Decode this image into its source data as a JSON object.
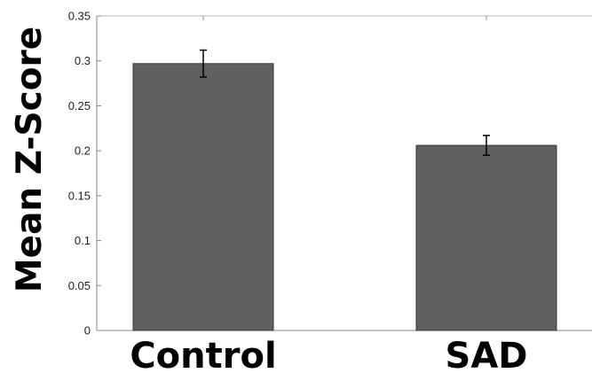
{
  "chart_data": {
    "type": "bar",
    "title": "",
    "xlabel": "",
    "ylabel": "Mean Z-Score",
    "categories": [
      "Control",
      "SAD"
    ],
    "values": [
      0.297,
      0.206
    ],
    "error": [
      0.015,
      0.011
    ],
    "ylim": [
      0,
      0.35
    ],
    "yticks": [
      0,
      0.05,
      0.1,
      0.15,
      0.2,
      0.25,
      0.3,
      0.35
    ],
    "ytick_labels": [
      "0",
      "0.05",
      "0.1",
      "0.15",
      "0.2",
      "0.25",
      "0.3",
      "0.35"
    ],
    "grid": false,
    "bar_color": "#606060"
  }
}
